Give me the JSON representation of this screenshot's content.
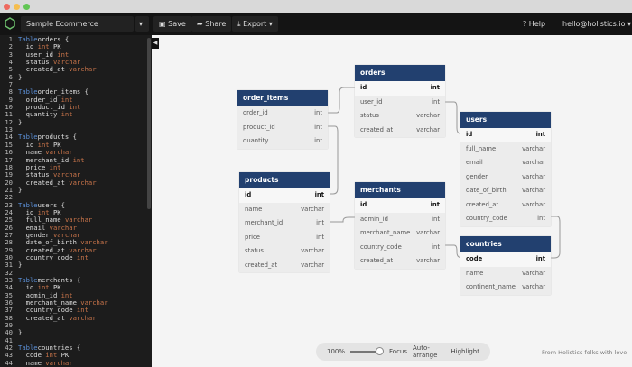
{
  "toolbar": {
    "project": "Sample Ecommerce",
    "save": "Save",
    "share": "Share",
    "export": "Export",
    "help": "Help",
    "user": "hello@holistics.io"
  },
  "editor": {
    "lines": [
      [
        [
          "kw",
          "Table"
        ],
        [
          "",
          "orders {"
        ]
      ],
      [
        [
          "",
          "  id "
        ],
        [
          "ty",
          "int"
        ],
        [
          "",
          " PK"
        ]
      ],
      [
        [
          "",
          "  user_id "
        ],
        [
          "ty",
          "int"
        ]
      ],
      [
        [
          "",
          "  status "
        ],
        [
          "ty",
          "varchar"
        ]
      ],
      [
        [
          "",
          "  created_at "
        ],
        [
          "ty",
          "varchar"
        ]
      ],
      [
        [
          "",
          "}"
        ]
      ],
      [],
      [
        [
          "kw",
          "Table"
        ],
        [
          "",
          "order_items {"
        ]
      ],
      [
        [
          "",
          "  order_id "
        ],
        [
          "ty",
          "int"
        ]
      ],
      [
        [
          "",
          "  product_id "
        ],
        [
          "ty",
          "int"
        ]
      ],
      [
        [
          "",
          "  quantity "
        ],
        [
          "ty",
          "int"
        ]
      ],
      [
        [
          "",
          "}"
        ]
      ],
      [],
      [
        [
          "kw",
          "Table"
        ],
        [
          "",
          "products {"
        ]
      ],
      [
        [
          "",
          "  id "
        ],
        [
          "ty",
          "int"
        ],
        [
          "",
          " PK"
        ]
      ],
      [
        [
          "",
          "  name "
        ],
        [
          "ty",
          "varchar"
        ]
      ],
      [
        [
          "",
          "  merchant_id "
        ],
        [
          "ty",
          "int"
        ]
      ],
      [
        [
          "",
          "  price "
        ],
        [
          "ty",
          "int"
        ]
      ],
      [
        [
          "",
          "  status "
        ],
        [
          "ty",
          "varchar"
        ]
      ],
      [
        [
          "",
          "  created_at "
        ],
        [
          "ty",
          "varchar"
        ]
      ],
      [
        [
          "",
          "}"
        ]
      ],
      [],
      [
        [
          "kw",
          "Table"
        ],
        [
          "",
          "users {"
        ]
      ],
      [
        [
          "",
          "  id "
        ],
        [
          "ty",
          "int"
        ],
        [
          "",
          " PK"
        ]
      ],
      [
        [
          "",
          "  full_name "
        ],
        [
          "ty",
          "varchar"
        ]
      ],
      [
        [
          "",
          "  email "
        ],
        [
          "ty",
          "varchar"
        ]
      ],
      [
        [
          "",
          "  gender "
        ],
        [
          "ty",
          "varchar"
        ]
      ],
      [
        [
          "",
          "  date_of_birth "
        ],
        [
          "ty",
          "varchar"
        ]
      ],
      [
        [
          "",
          "  created_at "
        ],
        [
          "ty",
          "varchar"
        ]
      ],
      [
        [
          "",
          "  country_code "
        ],
        [
          "ty",
          "int"
        ]
      ],
      [
        [
          "",
          "}"
        ]
      ],
      [],
      [
        [
          "kw",
          "Table"
        ],
        [
          "",
          "merchants {"
        ]
      ],
      [
        [
          "",
          "  id "
        ],
        [
          "ty",
          "int"
        ],
        [
          "",
          " PK"
        ]
      ],
      [
        [
          "",
          "  admin_id "
        ],
        [
          "ty",
          "int"
        ]
      ],
      [
        [
          "",
          "  merchant_name "
        ],
        [
          "ty",
          "varchar"
        ]
      ],
      [
        [
          "",
          "  country_code "
        ],
        [
          "ty",
          "int"
        ]
      ],
      [
        [
          "",
          "  created_at "
        ],
        [
          "ty",
          "varchar"
        ]
      ],
      [],
      [
        [
          "",
          "}"
        ]
      ],
      [],
      [
        [
          "kw",
          "Table"
        ],
        [
          "",
          "countries {"
        ]
      ],
      [
        [
          "",
          "  code "
        ],
        [
          "ty",
          "int"
        ],
        [
          "",
          " PK"
        ]
      ],
      [
        [
          "",
          "  name "
        ],
        [
          "ty",
          "varchar"
        ]
      ]
    ]
  },
  "tables": [
    {
      "name": "order_items",
      "fields": [
        [
          "order_id",
          "int"
        ],
        [
          "product_id",
          "int"
        ],
        [
          "quantity",
          "int"
        ]
      ]
    },
    {
      "name": "orders",
      "fields": [
        [
          "id",
          "int"
        ],
        [
          "user_id",
          "int"
        ],
        [
          "status",
          "varchar"
        ],
        [
          "created_at",
          "varchar"
        ]
      ]
    },
    {
      "name": "users",
      "fields": [
        [
          "id",
          "int"
        ],
        [
          "full_name",
          "varchar"
        ],
        [
          "email",
          "varchar"
        ],
        [
          "gender",
          "varchar"
        ],
        [
          "date_of_birth",
          "varchar"
        ],
        [
          "created_at",
          "varchar"
        ],
        [
          "country_code",
          "int"
        ]
      ]
    },
    {
      "name": "products",
      "fields": [
        [
          "id",
          "int"
        ],
        [
          "name",
          "varchar"
        ],
        [
          "merchant_id",
          "int"
        ],
        [
          "price",
          "int"
        ],
        [
          "status",
          "varchar"
        ],
        [
          "created_at",
          "varchar"
        ]
      ]
    },
    {
      "name": "merchants",
      "fields": [
        [
          "id",
          "int"
        ],
        [
          "admin_id",
          "int"
        ],
        [
          "merchant_name",
          "varchar"
        ],
        [
          "country_code",
          "int"
        ],
        [
          "created_at",
          "varchar"
        ]
      ]
    },
    {
      "name": "countries",
      "fields": [
        [
          "code",
          "int"
        ],
        [
          "name",
          "varchar"
        ],
        [
          "continent_name",
          "varchar"
        ]
      ]
    }
  ],
  "bottom": {
    "zoom": "100%",
    "zoom_level": 1.0,
    "focus": "Focus",
    "auto_arrange": "Auto-arrange",
    "highlight": "Highlight",
    "credit": "From Holistics folks with love"
  },
  "colors": {
    "header": "#22406f",
    "editor_bg": "#1c1c1c",
    "keyword": "#5b8fd6",
    "type": "#c8744a"
  }
}
